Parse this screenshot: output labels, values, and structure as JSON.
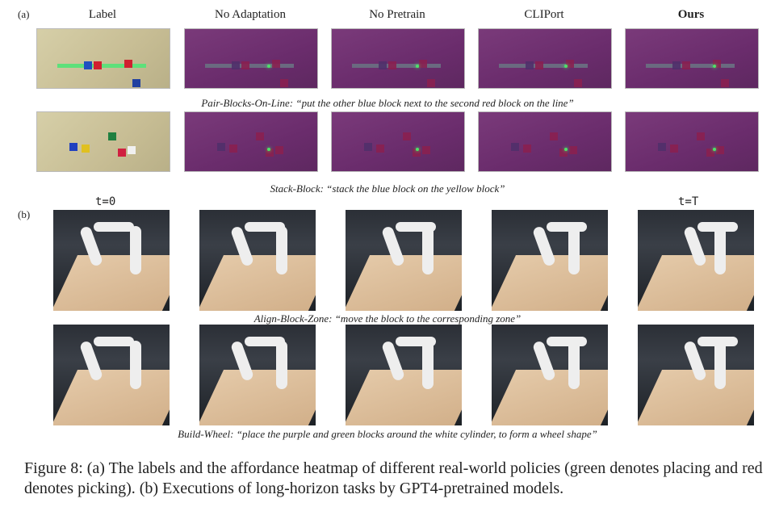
{
  "panel_a_label": "(a)",
  "panel_b_label": "(b)",
  "columns": [
    "Label",
    "No Adaptation",
    "No Pretrain",
    "CLIPort",
    "Ours"
  ],
  "caption_row1": "Pair-Blocks-On-Line: “put the other blue block next to the second red block on the line”",
  "caption_row2": "Stack-Block: “stack the blue block on the yellow block”",
  "time_start": "t=0",
  "time_end": "t=T",
  "caption_row3": "Align-Block-Zone: “move the block to the corresponding zone”",
  "caption_row4": "Build-Wheel: “place the purple and green blocks around the white cylinder, to form a wheel shape”",
  "figure_caption": "Figure 8: (a) The labels and the affordance heatmap of different real-world policies (green denotes placing and red denotes picking). (b) Executions of long-horizon tasks by GPT4-pretrained models.",
  "colors": {
    "heatmap_bg": "#6a2c6c",
    "place": "#4ee06a",
    "pick": "#e02020"
  }
}
